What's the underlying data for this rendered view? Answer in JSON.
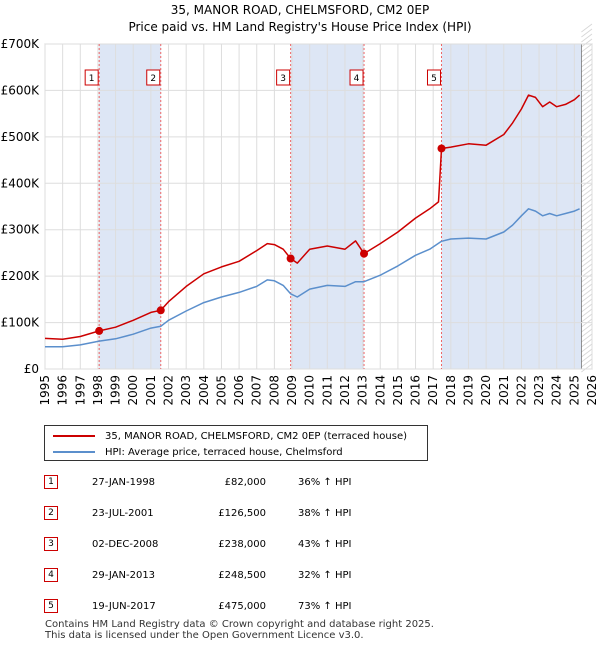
{
  "chart_data": {
    "type": "line",
    "title": "35, MANOR ROAD, CHELMSFORD, CM2 0EP",
    "subtitle": "Price paid vs. HM Land Registry's House Price Index (HPI)",
    "xlabel": "",
    "ylabel": "",
    "xlim": [
      1995,
      2026
    ],
    "ylim": [
      0,
      700000
    ],
    "grid": true,
    "y_ticks": [
      0,
      100000,
      200000,
      300000,
      400000,
      500000,
      600000,
      700000
    ],
    "y_tick_labels": [
      "£0",
      "£100K",
      "£200K",
      "£300K",
      "£400K",
      "£500K",
      "£600K",
      "£700K"
    ],
    "x_ticks": [
      1995,
      1996,
      1997,
      1998,
      1999,
      2000,
      2001,
      2002,
      2003,
      2004,
      2005,
      2006,
      2007,
      2008,
      2009,
      2010,
      2011,
      2012,
      2013,
      2014,
      2015,
      2016,
      2017,
      2018,
      2019,
      2020,
      2021,
      2022,
      2023,
      2024,
      2025,
      2026
    ],
    "x_tick_labels": [
      "1995",
      "1996",
      "1997",
      "1998",
      "1999",
      "2000",
      "2001",
      "2002",
      "2003",
      "2004",
      "2005",
      "2006",
      "2007",
      "2008",
      "2009",
      "2010",
      "2011",
      "2012",
      "2013",
      "2014",
      "2015",
      "2016",
      "2017",
      "2018",
      "2019",
      "2020",
      "2021",
      "2022",
      "2023",
      "2024",
      "2025",
      "2026"
    ],
    "colors": {
      "property": "#cc0000",
      "hpi": "#5b8fcc",
      "shade": "#dde6f5",
      "vline": "#ee6666",
      "grid": "#dddddd",
      "marker": "#cc0000"
    },
    "series": [
      {
        "name": "35, MANOR ROAD, CHELMSFORD, CM2 0EP (terraced house)",
        "color": "#cc0000",
        "points": [
          [
            1995.0,
            66000
          ],
          [
            1996.0,
            64000
          ],
          [
            1997.0,
            70000
          ],
          [
            1998.07,
            82000
          ],
          [
            1999.0,
            90000
          ],
          [
            2000.0,
            105000
          ],
          [
            2001.0,
            122000
          ],
          [
            2001.56,
            126500
          ],
          [
            2002.0,
            145000
          ],
          [
            2003.0,
            178000
          ],
          [
            2004.0,
            205000
          ],
          [
            2005.0,
            220000
          ],
          [
            2006.0,
            232000
          ],
          [
            2007.0,
            255000
          ],
          [
            2007.6,
            270000
          ],
          [
            2008.0,
            268000
          ],
          [
            2008.5,
            258000
          ],
          [
            2008.92,
            238000
          ],
          [
            2009.3,
            228000
          ],
          [
            2010.0,
            258000
          ],
          [
            2011.0,
            265000
          ],
          [
            2012.0,
            258000
          ],
          [
            2012.6,
            276000
          ],
          [
            2013.08,
            248500
          ],
          [
            2014.0,
            270000
          ],
          [
            2015.0,
            295000
          ],
          [
            2016.0,
            325000
          ],
          [
            2016.8,
            345000
          ],
          [
            2017.3,
            360000
          ],
          [
            2017.47,
            475000
          ],
          [
            2018.0,
            478000
          ],
          [
            2019.0,
            485000
          ],
          [
            2020.0,
            482000
          ],
          [
            2021.0,
            505000
          ],
          [
            2021.5,
            530000
          ],
          [
            2022.0,
            560000
          ],
          [
            2022.4,
            590000
          ],
          [
            2022.8,
            585000
          ],
          [
            2023.2,
            565000
          ],
          [
            2023.6,
            575000
          ],
          [
            2024.0,
            565000
          ],
          [
            2024.5,
            570000
          ],
          [
            2025.0,
            580000
          ],
          [
            2025.3,
            590000
          ]
        ]
      },
      {
        "name": "HPI: Average price, terraced house, Chelmsford",
        "color": "#5b8fcc",
        "points": [
          [
            1995.0,
            48000
          ],
          [
            1996.0,
            48000
          ],
          [
            1997.0,
            52000
          ],
          [
            1998.07,
            60000
          ],
          [
            1999.0,
            65000
          ],
          [
            2000.0,
            75000
          ],
          [
            2001.0,
            88000
          ],
          [
            2001.56,
            92000
          ],
          [
            2002.0,
            105000
          ],
          [
            2003.0,
            125000
          ],
          [
            2004.0,
            143000
          ],
          [
            2005.0,
            155000
          ],
          [
            2006.0,
            165000
          ],
          [
            2007.0,
            178000
          ],
          [
            2007.6,
            192000
          ],
          [
            2008.0,
            190000
          ],
          [
            2008.5,
            180000
          ],
          [
            2008.92,
            162000
          ],
          [
            2009.3,
            155000
          ],
          [
            2010.0,
            172000
          ],
          [
            2011.0,
            180000
          ],
          [
            2012.0,
            178000
          ],
          [
            2012.6,
            188000
          ],
          [
            2013.08,
            188000
          ],
          [
            2014.0,
            202000
          ],
          [
            2015.0,
            222000
          ],
          [
            2016.0,
            245000
          ],
          [
            2016.8,
            258000
          ],
          [
            2017.47,
            275000
          ],
          [
            2018.0,
            280000
          ],
          [
            2019.0,
            282000
          ],
          [
            2020.0,
            280000
          ],
          [
            2021.0,
            295000
          ],
          [
            2021.5,
            310000
          ],
          [
            2022.0,
            330000
          ],
          [
            2022.4,
            345000
          ],
          [
            2022.8,
            340000
          ],
          [
            2023.2,
            330000
          ],
          [
            2023.6,
            335000
          ],
          [
            2024.0,
            330000
          ],
          [
            2024.5,
            335000
          ],
          [
            2025.0,
            340000
          ],
          [
            2025.3,
            345000
          ]
        ]
      }
    ],
    "sales": [
      {
        "label": "1",
        "x": 1998.07,
        "value": 82000
      },
      {
        "label": "2",
        "x": 2001.56,
        "value": 126500
      },
      {
        "label": "3",
        "x": 2008.92,
        "value": 238000
      },
      {
        "label": "4",
        "x": 2013.08,
        "value": 248500
      },
      {
        "label": "5",
        "x": 2017.47,
        "value": 475000
      }
    ],
    "shaded_spans": [
      [
        1998.07,
        2001.56
      ],
      [
        2008.92,
        2013.08
      ],
      [
        2017.47,
        2025.4
      ]
    ],
    "forecast_from": 2025.4
  },
  "legend": {
    "property_label": "35, MANOR ROAD, CHELMSFORD, CM2 0EP (terraced house)",
    "hpi_label": "HPI: Average price, terraced house, Chelmsford"
  },
  "sales_table": [
    {
      "num": "1",
      "date": "27-JAN-1998",
      "price": "£82,000",
      "hpi": "36% ↑ HPI"
    },
    {
      "num": "2",
      "date": "23-JUL-2001",
      "price": "£126,500",
      "hpi": "38% ↑ HPI"
    },
    {
      "num": "3",
      "date": "02-DEC-2008",
      "price": "£238,000",
      "hpi": "43% ↑ HPI"
    },
    {
      "num": "4",
      "date": "29-JAN-2013",
      "price": "£248,500",
      "hpi": "32% ↑ HPI"
    },
    {
      "num": "5",
      "date": "19-JUN-2017",
      "price": "£475,000",
      "hpi": "73% ↑ HPI"
    }
  ],
  "footer": {
    "line1": "Contains HM Land Registry data © Crown copyright and database right 2025.",
    "line2": "This data is licensed under the Open Government Licence v3.0."
  }
}
